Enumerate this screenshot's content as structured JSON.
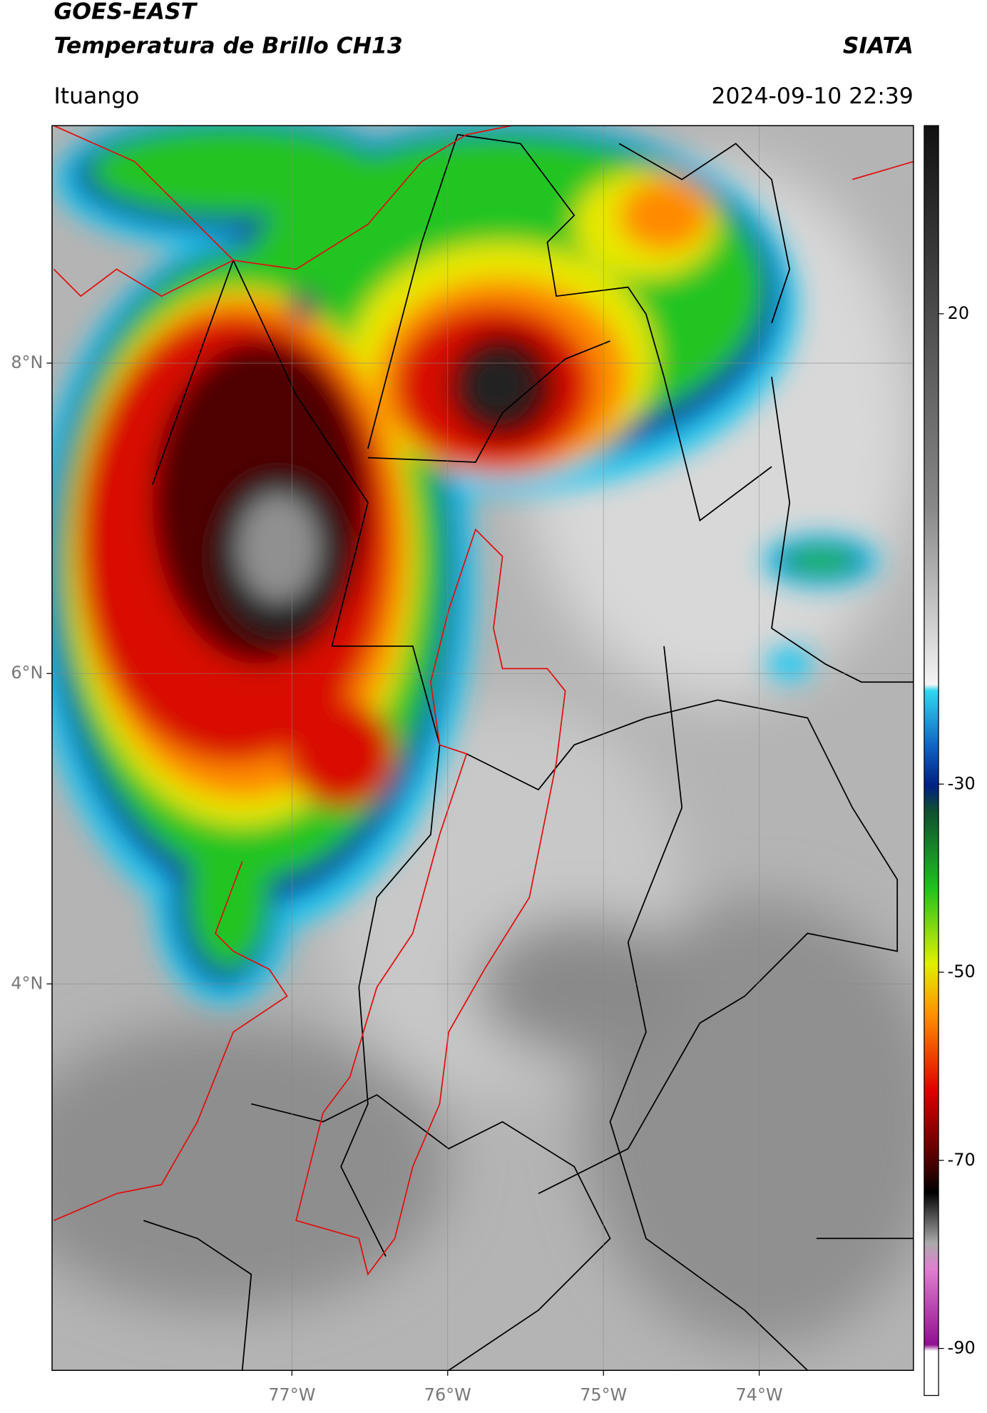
{
  "header": {
    "title": "GOES-EAST",
    "subtitle": "Temperatura de Brillo CH13",
    "brand": "SIATA",
    "location": "Ituango",
    "datetime": "2024-09-10 22:39"
  },
  "map": {
    "xlim": [
      -78.54,
      -73.01
    ],
    "ylim": [
      1.51,
      9.53
    ],
    "xticks": [
      {
        "value": -77,
        "label": "77°W"
      },
      {
        "value": -76,
        "label": "76°W"
      },
      {
        "value": -75,
        "label": "75°W"
      },
      {
        "value": -74,
        "label": "74°W"
      }
    ],
    "yticks": [
      {
        "value": 4,
        "label": "4°N"
      },
      {
        "value": 6,
        "label": "6°N"
      },
      {
        "value": 8,
        "label": "8°N"
      }
    ],
    "grid": true
  },
  "colorbar": {
    "lim": [
      -95,
      40
    ],
    "ticks": [
      20,
      -30,
      -50,
      -70,
      -90
    ]
  }
}
